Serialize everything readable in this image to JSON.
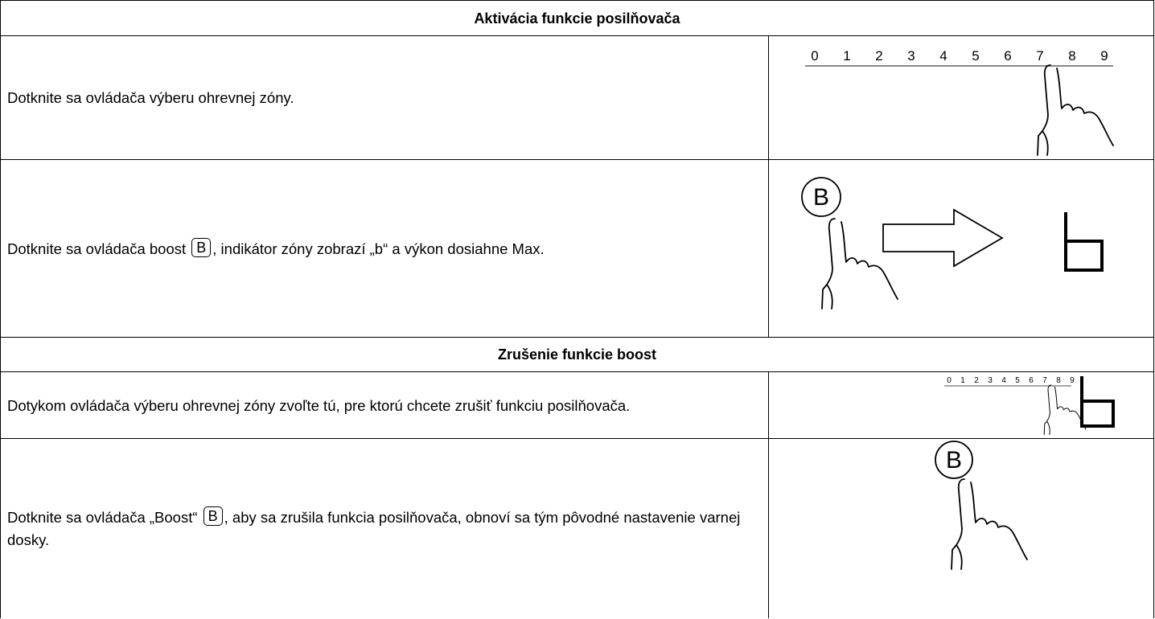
{
  "sections": [
    {
      "title": "Aktivácia funkcie posilňovača",
      "rows": [
        {
          "text": [
            "Dotknite sa ovládača výberu ohrevnej zóny."
          ],
          "scale": [
            "0",
            "1",
            "2",
            "3",
            "4",
            "5",
            "6",
            "7",
            "8",
            "9"
          ]
        },
        {
          "text": [
            "Dotknite sa ovládača boost ",
            "B",
            ", indikátor zóny zobrazí „b“ a výkon dosiahne Max."
          ],
          "button": "B"
        }
      ]
    },
    {
      "title": "Zrušenie funkcie boost",
      "rows": [
        {
          "text": [
            "Dotykom ovládača výberu ohrevnej zóny zvoľte tú, pre ktorú chcete zrušiť funkciu posilňovača."
          ],
          "scale": [
            "0",
            "1",
            "2",
            "3",
            "4",
            "5",
            "6",
            "7",
            "8",
            "9"
          ]
        },
        {
          "text": [
            "Dotknite sa ovládača „Boost“ ",
            "B",
            ", aby sa zrušila funkcia posilňovača, obnoví sa tým pôvodné nastavenie varnej dosky."
          ],
          "button": "B"
        }
      ]
    }
  ]
}
